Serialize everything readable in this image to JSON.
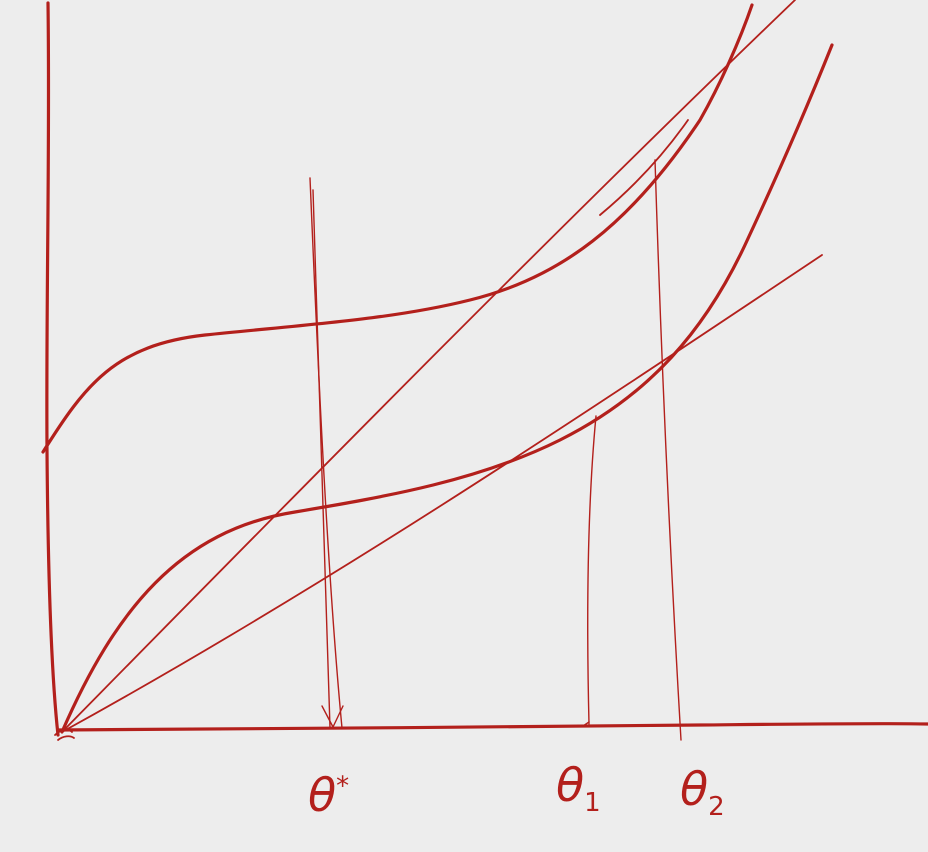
{
  "ink_color": "#b3201c",
  "background": "#ededed",
  "labels": {
    "theta_star": {
      "base": "θ",
      "mark": "*"
    },
    "theta_1": {
      "base": "θ",
      "sub": "1"
    },
    "theta_2": {
      "base": "θ",
      "sub": "2"
    }
  }
}
